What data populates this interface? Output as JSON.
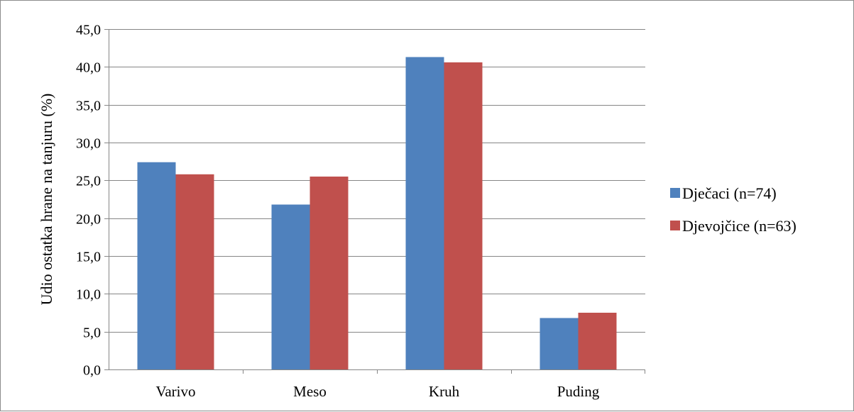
{
  "chart_data": {
    "type": "bar",
    "title": "",
    "xlabel": "",
    "ylabel": "Udio ostatka hrane na tanjuru (%)",
    "ylim": [
      0,
      45
    ],
    "y_tick_step": 5,
    "y_tick_format": "comma-1-decimal",
    "categories": [
      "Varivo",
      "Meso",
      "Kruh",
      "Puding"
    ],
    "series": [
      {
        "name": "Dječaci (n=74)",
        "color": "#4f81bd",
        "values": [
          27.4,
          21.8,
          41.3,
          6.8
        ]
      },
      {
        "name": "Djevojčice (n=63)",
        "color": "#c0504d",
        "values": [
          25.8,
          25.5,
          40.6,
          7.5
        ]
      }
    ],
    "grid": "horizontal",
    "legend_position": "right"
  }
}
